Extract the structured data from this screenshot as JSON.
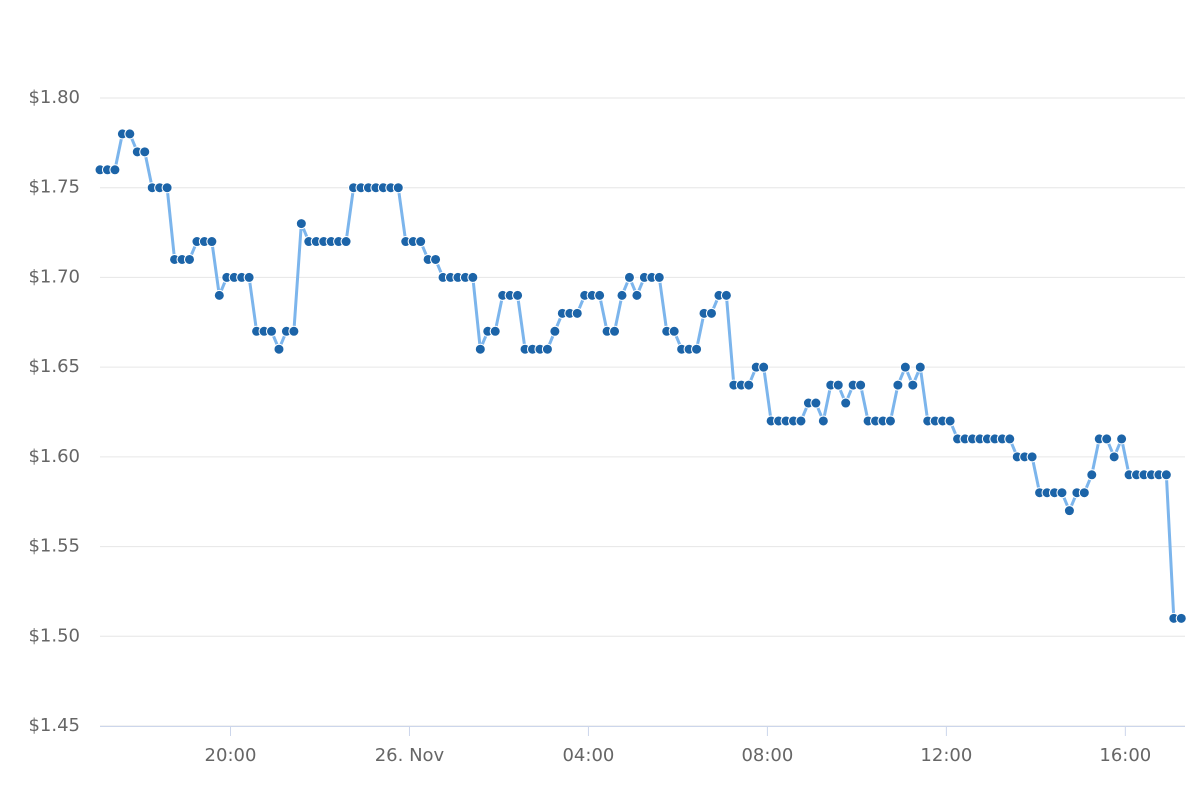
{
  "chart_data": {
    "type": "line",
    "x": [
      "25. Nov 17:05",
      "25. Nov 17:15",
      "25. Nov 17:25",
      "25. Nov 17:35",
      "25. Nov 17:45",
      "25. Nov 17:55",
      "25. Nov 18:05",
      "25. Nov 18:15",
      "25. Nov 18:25",
      "25. Nov 18:35",
      "25. Nov 18:45",
      "25. Nov 18:55",
      "25. Nov 19:05",
      "25. Nov 19:15",
      "25. Nov 19:25",
      "25. Nov 19:35",
      "25. Nov 19:45",
      "25. Nov 19:55",
      "25. Nov 20:05",
      "25. Nov 20:15",
      "25. Nov 20:25",
      "25. Nov 20:35",
      "25. Nov 20:45",
      "25. Nov 20:55",
      "25. Nov 21:05",
      "25. Nov 21:15",
      "25. Nov 21:25",
      "25. Nov 21:35",
      "25. Nov 21:45",
      "25. Nov 21:55",
      "25. Nov 22:05",
      "25. Nov 22:15",
      "25. Nov 22:25",
      "25. Nov 22:35",
      "25. Nov 22:45",
      "25. Nov 22:55",
      "25. Nov 23:05",
      "25. Nov 23:15",
      "25. Nov 23:25",
      "25. Nov 23:35",
      "25. Nov 23:45",
      "25. Nov 23:55",
      "26. Nov 00:05",
      "26. Nov 00:15",
      "26. Nov 00:25",
      "26. Nov 00:35",
      "26. Nov 00:45",
      "26. Nov 00:55",
      "26. Nov 01:05",
      "26. Nov 01:15",
      "26. Nov 01:25",
      "26. Nov 01:35",
      "26. Nov 01:45",
      "26. Nov 01:55",
      "26. Nov 02:05",
      "26. Nov 02:15",
      "26. Nov 02:25",
      "26. Nov 02:35",
      "26. Nov 02:45",
      "26. Nov 02:55",
      "26. Nov 03:05",
      "26. Nov 03:15",
      "26. Nov 03:25",
      "26. Nov 03:35",
      "26. Nov 03:45",
      "26. Nov 03:55",
      "26. Nov 04:05",
      "26. Nov 04:15",
      "26. Nov 04:25",
      "26. Nov 04:35",
      "26. Nov 04:45",
      "26. Nov 04:55",
      "26. Nov 05:05",
      "26. Nov 05:15",
      "26. Nov 05:25",
      "26. Nov 05:35",
      "26. Nov 05:45",
      "26. Nov 05:55",
      "26. Nov 06:05",
      "26. Nov 06:15",
      "26. Nov 06:25",
      "26. Nov 06:35",
      "26. Nov 06:45",
      "26. Nov 06:55",
      "26. Nov 07:05",
      "26. Nov 07:15",
      "26. Nov 07:25",
      "26. Nov 07:35",
      "26. Nov 07:45",
      "26. Nov 07:55",
      "26. Nov 08:05",
      "26. Nov 08:15",
      "26. Nov 08:25",
      "26. Nov 08:35",
      "26. Nov 08:45",
      "26. Nov 08:55",
      "26. Nov 09:05",
      "26. Nov 09:15",
      "26. Nov 09:25",
      "26. Nov 09:35",
      "26. Nov 09:45",
      "26. Nov 09:55",
      "26. Nov 10:05",
      "26. Nov 10:15",
      "26. Nov 10:25",
      "26. Nov 10:35",
      "26. Nov 10:45",
      "26. Nov 10:55",
      "26. Nov 11:05",
      "26. Nov 11:15",
      "26. Nov 11:25",
      "26. Nov 11:35",
      "26. Nov 11:45",
      "26. Nov 11:55",
      "26. Nov 12:05",
      "26. Nov 12:15",
      "26. Nov 12:25",
      "26. Nov 12:35",
      "26. Nov 12:45",
      "26. Nov 12:55",
      "26. Nov 13:05",
      "26. Nov 13:15",
      "26. Nov 13:25",
      "26. Nov 13:35",
      "26. Nov 13:45",
      "26. Nov 13:55",
      "26. Nov 14:05",
      "26. Nov 14:15",
      "26. Nov 14:25",
      "26. Nov 14:35",
      "26. Nov 14:45",
      "26. Nov 14:55",
      "26. Nov 15:05",
      "26. Nov 15:15",
      "26. Nov 15:25",
      "26. Nov 15:35",
      "26. Nov 15:45",
      "26. Nov 15:55",
      "26. Nov 16:05",
      "26. Nov 16:15",
      "26. Nov 16:25",
      "26. Nov 16:35",
      "26. Nov 16:45",
      "26. Nov 16:55",
      "26. Nov 17:05",
      "26. Nov 17:15"
    ],
    "series": [
      {
        "color": "#7cb5ec",
        "marker_color": "#1c64a8",
        "values": [
          1.76,
          1.76,
          1.76,
          1.78,
          1.78,
          1.77,
          1.77,
          1.75,
          1.75,
          1.75,
          1.71,
          1.71,
          1.71,
          1.72,
          1.72,
          1.72,
          1.69,
          1.7,
          1.7,
          1.7,
          1.7,
          1.67,
          1.67,
          1.67,
          1.66,
          1.67,
          1.67,
          1.73,
          1.72,
          1.72,
          1.72,
          1.72,
          1.72,
          1.72,
          1.75,
          1.75,
          1.75,
          1.75,
          1.75,
          1.75,
          1.75,
          1.72,
          1.72,
          1.72,
          1.71,
          1.71,
          1.7,
          1.7,
          1.7,
          1.7,
          1.7,
          1.66,
          1.67,
          1.67,
          1.69,
          1.69,
          1.69,
          1.66,
          1.66,
          1.66,
          1.66,
          1.67,
          1.68,
          1.68,
          1.68,
          1.69,
          1.69,
          1.69,
          1.67,
          1.67,
          1.69,
          1.7,
          1.69,
          1.7,
          1.7,
          1.7,
          1.67,
          1.67,
          1.66,
          1.66,
          1.66,
          1.68,
          1.68,
          1.69,
          1.69,
          1.64,
          1.64,
          1.64,
          1.65,
          1.65,
          1.62,
          1.62,
          1.62,
          1.62,
          1.62,
          1.63,
          1.63,
          1.62,
          1.64,
          1.64,
          1.63,
          1.64,
          1.64,
          1.62,
          1.62,
          1.62,
          1.62,
          1.64,
          1.65,
          1.64,
          1.65,
          1.62,
          1.62,
          1.62,
          1.62,
          1.61,
          1.61,
          1.61,
          1.61,
          1.61,
          1.61,
          1.61,
          1.61,
          1.6,
          1.6,
          1.6,
          1.58,
          1.58,
          1.58,
          1.58,
          1.57,
          1.58,
          1.58,
          1.59,
          1.61,
          1.61,
          1.6,
          1.61,
          1.59,
          1.59,
          1.59,
          1.59,
          1.59,
          1.59,
          1.51,
          1.51
        ]
      }
    ],
    "xlim": [
      "25. Nov 17:05",
      "26. Nov 17:20"
    ],
    "xticks": [
      {
        "value": "25. Nov 20:00",
        "label": "20:00"
      },
      {
        "value": "26. Nov 00:00",
        "label": "26. Nov"
      },
      {
        "value": "26. Nov 04:00",
        "label": "04:00"
      },
      {
        "value": "26. Nov 08:00",
        "label": "08:00"
      },
      {
        "value": "26. Nov 12:00",
        "label": "12:00"
      },
      {
        "value": "26. Nov 16:00",
        "label": "16:00"
      }
    ],
    "ylim": [
      1.45,
      1.8
    ],
    "yticks": [
      {
        "value": 1.45,
        "label": "$1.45"
      },
      {
        "value": 1.5,
        "label": "$1.50"
      },
      {
        "value": 1.55,
        "label": "$1.55"
      },
      {
        "value": 1.6,
        "label": "$1.60"
      },
      {
        "value": 1.65,
        "label": "$1.65"
      },
      {
        "value": 1.7,
        "label": "$1.70"
      },
      {
        "value": 1.75,
        "label": "$1.75"
      },
      {
        "value": 1.8,
        "label": "$1.80"
      }
    ],
    "grid": true
  }
}
